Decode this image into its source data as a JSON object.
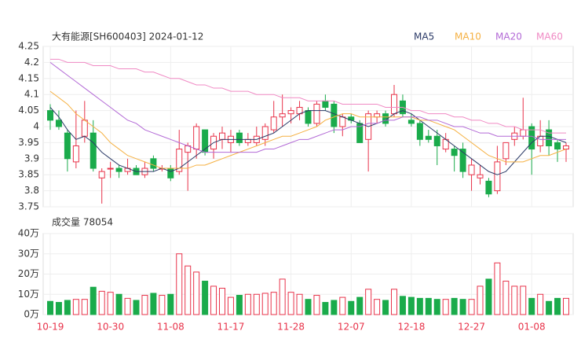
{
  "chart_data": [
    {
      "type": "candlestick",
      "title": "大有能源[SH600403] 2024-01-12",
      "categories": [
        "10-19",
        null,
        null,
        null,
        null,
        null,
        null,
        "10-30",
        null,
        null,
        null,
        null,
        null,
        null,
        "11-08",
        null,
        null,
        null,
        null,
        null,
        null,
        "11-17",
        null,
        null,
        null,
        null,
        null,
        null,
        "11-28",
        null,
        null,
        null,
        null,
        null,
        null,
        "12-07",
        null,
        null,
        null,
        null,
        null,
        null,
        "12-18",
        null,
        null,
        null,
        null,
        null,
        null,
        "12-27",
        null,
        null,
        null,
        null,
        null,
        null,
        "01-08",
        null,
        null,
        null,
        null
      ],
      "open": [
        4.05,
        4.02,
        3.98,
        3.89,
        3.97,
        3.98,
        3.84,
        3.87,
        3.87,
        3.86,
        3.87,
        3.85,
        3.9,
        3.87,
        3.87,
        3.86,
        3.92,
        3.93,
        3.99,
        3.93,
        3.96,
        3.95,
        3.98,
        3.95,
        3.95,
        3.96,
        3.99,
        4.03,
        4.04,
        4.04,
        4.05,
        4.01,
        4.08,
        4.07,
        4.0,
        4.03,
        4.01,
        3.96,
        4.03,
        4.04,
        4.04,
        4.08,
        4.02,
        4.01,
        3.97,
        3.97,
        3.93,
        3.93,
        3.93,
        3.85,
        3.84,
        3.83,
        3.8,
        3.9,
        3.96,
        3.97,
        4.0,
        3.94,
        3.99,
        3.95,
        3.93
      ],
      "high": [
        4.07,
        4.05,
        3.99,
        4.05,
        4.08,
        4.02,
        3.87,
        3.89,
        3.88,
        3.9,
        3.88,
        3.89,
        3.91,
        3.88,
        3.88,
        3.99,
        3.95,
        4.01,
        3.99,
        3.98,
        4.0,
        3.99,
        3.99,
        3.98,
        4.0,
        4.01,
        4.08,
        4.1,
        4.06,
        4.08,
        4.06,
        4.08,
        4.1,
        4.08,
        4.04,
        4.04,
        4.02,
        4.05,
        4.05,
        4.05,
        4.13,
        4.1,
        4.04,
        4.02,
        3.99,
        3.99,
        3.98,
        3.94,
        3.95,
        3.9,
        3.88,
        3.84,
        3.94,
        3.95,
        4.0,
        4.09,
        4.01,
        4.02,
        4.02,
        3.96,
        3.95
      ],
      "low": [
        3.99,
        3.99,
        3.86,
        3.87,
        3.95,
        3.86,
        3.76,
        3.84,
        3.84,
        3.85,
        3.85,
        3.84,
        3.86,
        3.86,
        3.83,
        3.85,
        3.8,
        3.9,
        3.91,
        3.9,
        3.93,
        3.92,
        3.94,
        3.94,
        3.94,
        3.94,
        3.98,
        4.0,
        4.01,
        4.02,
        4.0,
        4.0,
        4.05,
        3.98,
        3.97,
        4.01,
        3.95,
        3.86,
        4.01,
        4.0,
        4.03,
        4.03,
        4.0,
        3.94,
        3.95,
        3.88,
        3.92,
        3.86,
        3.84,
        3.8,
        3.82,
        3.78,
        3.79,
        3.88,
        3.94,
        3.96,
        3.85,
        3.92,
        3.91,
        3.89,
        3.89
      ],
      "close": [
        4.02,
        4.0,
        3.9,
        3.94,
        4.02,
        3.87,
        3.86,
        3.87,
        3.86,
        3.87,
        3.85,
        3.87,
        3.87,
        3.87,
        3.84,
        3.93,
        3.94,
        4.0,
        3.92,
        3.97,
        3.98,
        3.97,
        3.95,
        3.96,
        3.97,
        4.0,
        4.03,
        4.04,
        4.05,
        4.06,
        4.01,
        4.07,
        4.06,
        4.0,
        4.03,
        4.02,
        3.95,
        4.04,
        4.04,
        4.01,
        4.1,
        4.04,
        4.01,
        3.96,
        3.96,
        3.94,
        3.96,
        3.91,
        3.86,
        3.88,
        3.85,
        3.79,
        3.89,
        3.95,
        3.98,
        3.99,
        3.93,
        3.97,
        3.94,
        3.93,
        3.94
      ],
      "up_color": "#e8334a",
      "down_color": "#1aab4b",
      "series": [
        {
          "name": "MA5",
          "color": "#2b3a67",
          "values": [
            4.06,
            4.03,
            3.99,
            3.96,
            3.97,
            3.95,
            3.92,
            3.9,
            3.88,
            3.87,
            3.86,
            3.86,
            3.86,
            3.87,
            3.86,
            3.87,
            3.89,
            3.91,
            3.93,
            3.95,
            3.96,
            3.96,
            3.96,
            3.96,
            3.96,
            3.97,
            3.98,
            4.0,
            4.02,
            4.04,
            4.05,
            4.05,
            4.05,
            4.04,
            4.03,
            4.02,
            4.01,
            4.0,
            4.01,
            4.02,
            4.04,
            4.05,
            4.04,
            4.02,
            4.0,
            3.98,
            3.96,
            3.94,
            3.92,
            3.9,
            3.88,
            3.86,
            3.85,
            3.86,
            3.89,
            3.92,
            3.95,
            3.97,
            3.97,
            3.96,
            3.95
          ]
        },
        {
          "name": "MA10",
          "color": "#f5b041",
          "values": [
            4.11,
            4.09,
            4.07,
            4.04,
            4.02,
            4.0,
            3.98,
            3.95,
            3.93,
            3.91,
            3.9,
            3.89,
            3.88,
            3.87,
            3.87,
            3.87,
            3.87,
            3.88,
            3.88,
            3.89,
            3.9,
            3.91,
            3.92,
            3.93,
            3.94,
            3.95,
            3.96,
            3.97,
            3.97,
            3.98,
            3.99,
            4.0,
            4.02,
            4.03,
            4.04,
            4.04,
            4.03,
            4.03,
            4.03,
            4.03,
            4.03,
            4.03,
            4.03,
            4.02,
            4.02,
            4.01,
            4.0,
            3.99,
            3.97,
            3.95,
            3.93,
            3.91,
            3.9,
            3.89,
            3.89,
            3.89,
            3.9,
            3.91,
            3.91,
            3.92,
            3.93
          ]
        },
        {
          "name": "MA20",
          "color": "#b36ad6",
          "values": [
            4.2,
            4.18,
            4.16,
            4.14,
            4.12,
            4.1,
            4.08,
            4.06,
            4.04,
            4.02,
            4.01,
            3.99,
            3.98,
            3.97,
            3.96,
            3.95,
            3.94,
            3.93,
            3.92,
            3.92,
            3.92,
            3.92,
            3.92,
            3.92,
            3.92,
            3.93,
            3.93,
            3.94,
            3.95,
            3.96,
            3.96,
            3.97,
            3.98,
            3.99,
            3.99,
            4.0,
            4.0,
            4.01,
            4.01,
            4.02,
            4.02,
            4.03,
            4.03,
            4.03,
            4.02,
            4.02,
            4.01,
            4.0,
            4.0,
            3.99,
            3.98,
            3.98,
            3.97,
            3.97,
            3.97,
            3.97,
            3.97,
            3.96,
            3.96,
            3.96,
            3.96
          ]
        },
        {
          "name": "MA60",
          "color": "#f08ac4",
          "values": [
            4.21,
            4.21,
            4.2,
            4.2,
            4.2,
            4.19,
            4.19,
            4.19,
            4.18,
            4.18,
            4.18,
            4.17,
            4.17,
            4.16,
            4.15,
            4.15,
            4.14,
            4.13,
            4.13,
            4.12,
            4.12,
            4.11,
            4.11,
            4.11,
            4.1,
            4.1,
            4.1,
            4.09,
            4.09,
            4.09,
            4.08,
            4.08,
            4.08,
            4.08,
            4.07,
            4.07,
            4.07,
            4.07,
            4.07,
            4.06,
            4.06,
            4.06,
            4.05,
            4.05,
            4.04,
            4.04,
            4.04,
            4.03,
            4.03,
            4.02,
            4.02,
            4.01,
            4.01,
            4.0,
            4.0,
            3.99,
            3.99,
            3.99,
            3.98,
            3.98,
            3.98
          ]
        }
      ],
      "ylim": [
        3.75,
        4.25
      ],
      "yticks": [
        3.75,
        3.8,
        3.85,
        3.9,
        3.95,
        4,
        4.05,
        4.1,
        4.15,
        4.2,
        4.25
      ]
    },
    {
      "type": "bar",
      "title": "成交量 78054",
      "values": [
        6.5,
        6,
        7,
        7.5,
        7.5,
        13.5,
        11.5,
        11,
        10,
        8,
        7,
        9.5,
        10.5,
        9.5,
        10,
        30,
        24,
        21,
        16.5,
        14,
        13,
        8.5,
        9.5,
        10,
        10,
        10.5,
        11,
        17.5,
        11,
        10,
        7.5,
        9.5,
        6,
        7,
        8.5,
        6.5,
        8.5,
        12.5,
        7.5,
        7,
        12.5,
        9,
        8.5,
        8,
        8,
        7.5,
        7.5,
        8,
        7.5,
        7.5,
        14,
        17.5,
        25.5,
        16.5,
        14,
        14,
        8,
        10,
        6.5,
        8,
        8
      ],
      "ylim": [
        0,
        40
      ],
      "yticks": [
        {
          "value": 0,
          "label": "0万"
        },
        {
          "value": 10,
          "label": "10万"
        },
        {
          "value": 20,
          "label": "20万"
        },
        {
          "value": 30,
          "label": "30万"
        },
        {
          "value": 40,
          "label": "40万"
        }
      ]
    }
  ]
}
